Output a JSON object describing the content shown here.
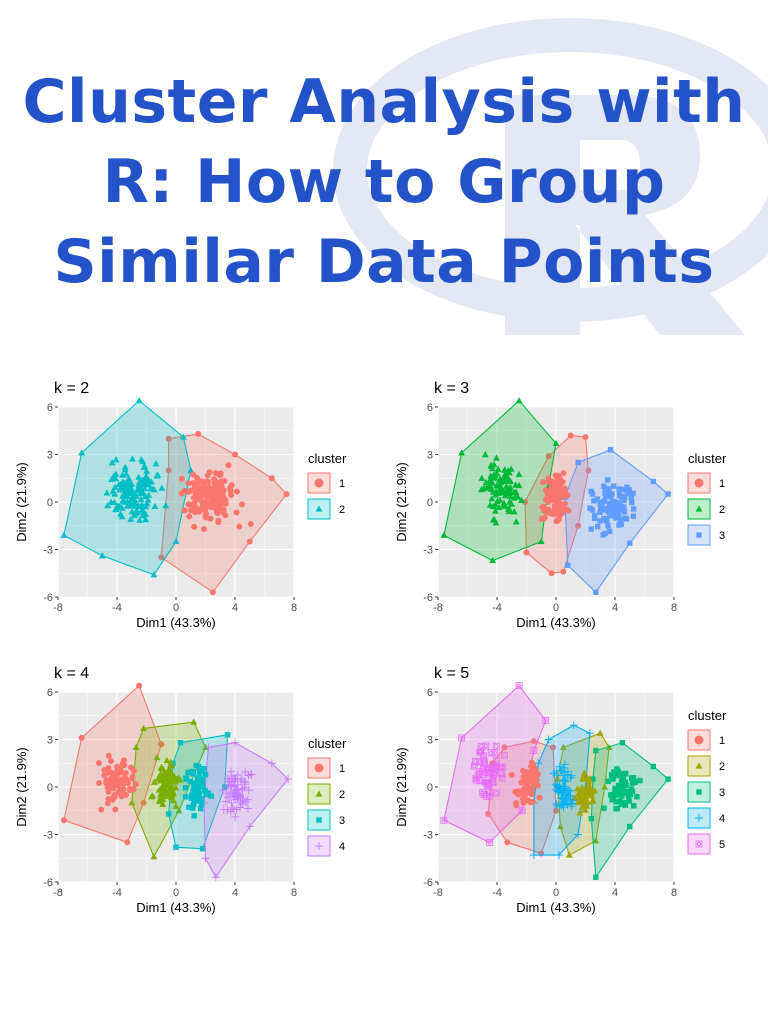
{
  "title_lines": [
    "Cluster Analysis with",
    "R: How to Group",
    "Similar Data Points"
  ],
  "colors": {
    "title": "#2352c9",
    "panel_bg": "#ebebeb",
    "grid": "#ffffff",
    "logo_tint": "#e3e8f4",
    "k2": [
      "#f8766d",
      "#00bfc4"
    ],
    "k3": [
      "#f8766d",
      "#00ba38",
      "#619cff"
    ],
    "k4": [
      "#f8766d",
      "#7cae00",
      "#00bfc4",
      "#c77cff"
    ],
    "k5": [
      "#f8766d",
      "#a3a500",
      "#00bf7d",
      "#00b0f6",
      "#e76bf3"
    ]
  },
  "chart_data": [
    {
      "type": "scatter",
      "title": "k = 2",
      "xlabel": "Dim1 (43.3%)",
      "ylabel": "Dim2 (21.9%)",
      "xlim": [
        -8,
        8
      ],
      "ylim": [
        -6,
        6
      ],
      "xticks": [
        "-8",
        "-4",
        "0",
        "4",
        "8"
      ],
      "yticks": [
        "6",
        "3",
        "0",
        "-3",
        "-6"
      ],
      "legend_title": "cluster",
      "legend_position": "right",
      "grid": true,
      "series": [
        {
          "name": "1",
          "shape": "circle",
          "hull": [
            [
              -0.5,
              4
            ],
            [
              1.5,
              4.3
            ],
            [
              4,
              3
            ],
            [
              6.5,
              1.5
            ],
            [
              7.5,
              0.5
            ],
            [
              5,
              -2.5
            ],
            [
              2.5,
              -5.7
            ],
            [
              -1,
              -3.5
            ],
            [
              -0.5,
              2
            ]
          ],
          "center": [
            2.5,
            0.3
          ],
          "spread": [
            2.2,
            1.9
          ],
          "count": 140
        },
        {
          "name": "2",
          "shape": "triangle",
          "hull": [
            [
              -2.5,
              6.4
            ],
            [
              0.5,
              4.1
            ],
            [
              1,
              2
            ],
            [
              0,
              -2.5
            ],
            [
              -1.5,
              -4.6
            ],
            [
              -5,
              -3.4
            ],
            [
              -7.6,
              -2.1
            ],
            [
              -6.4,
              3.1
            ]
          ],
          "center": [
            -2.8,
            0.6
          ],
          "spread": [
            2.0,
            1.9
          ],
          "count": 140
        }
      ]
    },
    {
      "type": "scatter",
      "title": "k = 3",
      "xlabel": "Dim1 (43.3%)",
      "ylabel": "Dim2 (21.9%)",
      "xlim": [
        -8,
        8
      ],
      "ylim": [
        -6,
        6
      ],
      "xticks": [
        "-8",
        "-4",
        "0",
        "4",
        "8"
      ],
      "yticks": [
        "6",
        "3",
        "0",
        "-3",
        "-6"
      ],
      "legend_title": "cluster",
      "legend_position": "right",
      "grid": true,
      "series": [
        {
          "name": "1",
          "shape": "circle",
          "hull": [
            [
              -0.5,
              2.9
            ],
            [
              1,
              4.2
            ],
            [
              2,
              4.1
            ],
            [
              2.2,
              2
            ],
            [
              1.5,
              -1.5
            ],
            [
              0.5,
              -4.4
            ],
            [
              -0.3,
              -4.5
            ],
            [
              -2,
              -3.2
            ],
            [
              -2.1,
              0
            ]
          ],
          "center": [
            0.0,
            0.2
          ],
          "spread": [
            0.9,
            1.7
          ],
          "count": 90
        },
        {
          "name": "2",
          "shape": "triangle",
          "hull": [
            [
              -2.5,
              6.4
            ],
            [
              0,
              3.7
            ],
            [
              -0.5,
              1
            ],
            [
              -1,
              -2.5
            ],
            [
              -4.3,
              -3.7
            ],
            [
              -7.6,
              -2.1
            ],
            [
              -6.4,
              3.1
            ]
          ],
          "center": [
            -3.8,
            0.7
          ],
          "spread": [
            1.6,
            1.9
          ],
          "count": 100
        },
        {
          "name": "3",
          "shape": "square",
          "hull": [
            [
              1.5,
              2.5
            ],
            [
              3.7,
              3.3
            ],
            [
              6.6,
              1.3
            ],
            [
              7.6,
              0.5
            ],
            [
              5,
              -2.6
            ],
            [
              2.7,
              -5.7
            ],
            [
              0.8,
              -4
            ],
            [
              0.6,
              0.3
            ]
          ],
          "center": [
            3.9,
            -0.3
          ],
          "spread": [
            1.5,
            1.6
          ],
          "count": 100
        }
      ]
    },
    {
      "type": "scatter",
      "title": "k = 4",
      "xlabel": "Dim1 (43.3%)",
      "ylabel": "Dim2 (21.9%)",
      "xlim": [
        -8,
        8
      ],
      "ylim": [
        -6,
        6
      ],
      "xticks": [
        "-8",
        "-4",
        "0",
        "4",
        "8"
      ],
      "yticks": [
        "6",
        "3",
        "0",
        "-3",
        "-6"
      ],
      "legend_title": "cluster",
      "legend_position": "right",
      "grid": true,
      "series": [
        {
          "name": "1",
          "shape": "circle",
          "hull": [
            [
              -2.5,
              6.4
            ],
            [
              -1,
              2.7
            ],
            [
              -2.2,
              -1
            ],
            [
              -3.3,
              -3.5
            ],
            [
              -7.6,
              -2.1
            ],
            [
              -6.4,
              3.1
            ]
          ],
          "center": [
            -4.0,
            0.3
          ],
          "spread": [
            1.4,
            1.7
          ],
          "count": 70
        },
        {
          "name": "2",
          "shape": "triangle",
          "hull": [
            [
              -2.2,
              3.7
            ],
            [
              1.2,
              4.1
            ],
            [
              2,
              2.5
            ],
            [
              0.2,
              -1.5
            ],
            [
              -1.5,
              -4.4
            ],
            [
              -3,
              -1
            ],
            [
              -2.7,
              2.5
            ]
          ],
          "center": [
            -0.6,
            0.2
          ],
          "spread": [
            1.0,
            1.6
          ],
          "count": 80
        },
        {
          "name": "3",
          "shape": "square",
          "hull": [
            [
              0.3,
              2.8
            ],
            [
              3.5,
              3.3
            ],
            [
              3.3,
              0
            ],
            [
              1.8,
              -3.9
            ],
            [
              0,
              -3.8
            ],
            [
              -0.5,
              -1.7
            ],
            [
              -0.2,
              1.5
            ]
          ],
          "center": [
            1.5,
            -0.1
          ],
          "spread": [
            0.8,
            1.6
          ],
          "count": 75
        },
        {
          "name": "4",
          "shape": "plus",
          "hull": [
            [
              2.2,
              2.5
            ],
            [
              4,
              2.8
            ],
            [
              6.5,
              1.5
            ],
            [
              7.6,
              0.5
            ],
            [
              5,
              -2.5
            ],
            [
              2.7,
              -5.7
            ],
            [
              2,
              -4.5
            ],
            [
              1.9,
              -1
            ]
          ],
          "center": [
            4.2,
            -0.1
          ],
          "spread": [
            1.3,
            1.5
          ],
          "count": 70
        }
      ]
    },
    {
      "type": "scatter",
      "title": "k = 5",
      "xlabel": "Dim1 (43.3%)",
      "ylabel": "Dim2 (21.9%)",
      "xlim": [
        -8,
        8
      ],
      "ylim": [
        -6,
        6
      ],
      "xticks": [
        "-8",
        "-4",
        "0",
        "4",
        "8"
      ],
      "yticks": [
        "6",
        "3",
        "0",
        "-3",
        "-6"
      ],
      "legend_title": "cluster",
      "legend_position": "right",
      "grid": true,
      "series": [
        {
          "name": "1",
          "shape": "circle",
          "hull": [
            [
              -3.5,
              2.5
            ],
            [
              -1.5,
              2.9
            ],
            [
              -0.2,
              2.5
            ],
            [
              0,
              -1.5
            ],
            [
              -1,
              -4.2
            ],
            [
              -3.3,
              -3.5
            ],
            [
              -4.6,
              -1.7
            ],
            [
              -4.3,
              1.5
            ]
          ],
          "center": [
            -2.0,
            0.2
          ],
          "spread": [
            0.9,
            1.4
          ],
          "count": 60
        },
        {
          "name": "2",
          "shape": "triangle",
          "hull": [
            [
              0.5,
              2.5
            ],
            [
              3,
              3.4
            ],
            [
              3.6,
              2.5
            ],
            [
              3.3,
              0
            ],
            [
              2.7,
              -3.4
            ],
            [
              0.9,
              -4.3
            ],
            [
              0.3,
              -2.5
            ],
            [
              0.1,
              0.5
            ]
          ],
          "center": [
            1.9,
            -0.2
          ],
          "spread": [
            0.7,
            1.5
          ],
          "count": 55
        },
        {
          "name": "3",
          "shape": "square",
          "hull": [
            [
              2.7,
              2.3
            ],
            [
              4.5,
              2.8
            ],
            [
              6.6,
              1.3
            ],
            [
              7.6,
              0.5
            ],
            [
              5,
              -2.5
            ],
            [
              2.7,
              -5.7
            ],
            [
              2.4,
              -2
            ],
            [
              2.5,
              0.5
            ]
          ],
          "center": [
            4.5,
            -0.1
          ],
          "spread": [
            1.2,
            1.5
          ],
          "count": 60
        },
        {
          "name": "4",
          "shape": "plus",
          "hull": [
            [
              -0.5,
              3
            ],
            [
              1.2,
              3.9
            ],
            [
              2.3,
              3.4
            ],
            [
              2,
              0
            ],
            [
              1.5,
              -3
            ],
            [
              0.2,
              -4.3
            ],
            [
              -1.5,
              -4.3
            ],
            [
              -1.5,
              -1
            ],
            [
              -1.2,
              1.5
            ]
          ],
          "center": [
            0.5,
            -0.2
          ],
          "spread": [
            0.8,
            1.6
          ],
          "count": 60
        },
        {
          "name": "5",
          "shape": "boxcircle",
          "hull": [
            [
              -2.5,
              6.4
            ],
            [
              -0.7,
              4.2
            ],
            [
              -1.5,
              2.3
            ],
            [
              -2.3,
              -1.5
            ],
            [
              -4.5,
              -3.5
            ],
            [
              -7.6,
              -2.1
            ],
            [
              -6.4,
              3.1
            ]
          ],
          "center": [
            -4.6,
            1.0
          ],
          "spread": [
            1.4,
            1.8
          ],
          "count": 55
        }
      ]
    }
  ]
}
